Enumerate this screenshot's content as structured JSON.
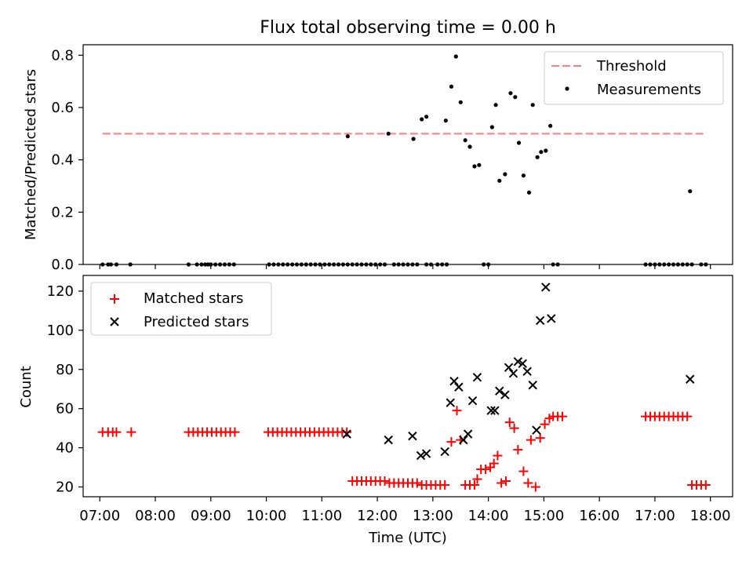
{
  "chart_data": [
    {
      "type": "scatter",
      "title": "Flux total observing time = 0.00 h",
      "xlabel": "",
      "ylabel": "Matched/Predicted stars",
      "xlim": [
        "06:42",
        "18:24"
      ],
      "ylim": [
        0,
        0.84
      ],
      "yticks": [
        0.0,
        0.2,
        0.4,
        0.6,
        0.8
      ],
      "ytick_labels": [
        "0.0",
        "0.2",
        "0.4",
        "0.6",
        "0.8"
      ],
      "legend": {
        "placement": "upper right",
        "entries": [
          "Threshold",
          "Measurements"
        ]
      },
      "threshold": {
        "name": "Threshold",
        "value": 0.5,
        "x_range": [
          "07:03",
          "17:54"
        ],
        "color": "#ff7f7f",
        "style": "dashed"
      },
      "series": [
        {
          "name": "Measurements",
          "color": "#000000",
          "marker": "dot",
          "points": [
            [
              "07:03",
              0
            ],
            [
              "07:09",
              0
            ],
            [
              "07:12",
              0
            ],
            [
              "07:18",
              0
            ],
            [
              "07:33",
              0
            ],
            [
              "08:36",
              0
            ],
            [
              "08:45",
              0
            ],
            [
              "08:50",
              0
            ],
            [
              "08:54",
              0
            ],
            [
              "08:57",
              0
            ],
            [
              "09:00",
              0
            ],
            [
              "09:05",
              0
            ],
            [
              "09:10",
              0
            ],
            [
              "09:15",
              0
            ],
            [
              "09:20",
              0
            ],
            [
              "09:25",
              0
            ],
            [
              "10:03",
              0
            ],
            [
              "10:08",
              0
            ],
            [
              "10:13",
              0
            ],
            [
              "10:18",
              0
            ],
            [
              "10:23",
              0
            ],
            [
              "10:28",
              0
            ],
            [
              "10:33",
              0
            ],
            [
              "10:38",
              0
            ],
            [
              "10:43",
              0
            ],
            [
              "10:48",
              0
            ],
            [
              "10:53",
              0
            ],
            [
              "10:58",
              0
            ],
            [
              "11:03",
              0
            ],
            [
              "11:08",
              0
            ],
            [
              "11:13",
              0
            ],
            [
              "11:18",
              0
            ],
            [
              "11:23",
              0
            ],
            [
              "11:28",
              0
            ],
            [
              "11:33",
              0
            ],
            [
              "11:38",
              0
            ],
            [
              "11:43",
              0
            ],
            [
              "11:48",
              0
            ],
            [
              "11:53",
              0
            ],
            [
              "11:58",
              0
            ],
            [
              "12:03",
              0
            ],
            [
              "12:08",
              0
            ],
            [
              "12:18",
              0
            ],
            [
              "12:23",
              0
            ],
            [
              "12:28",
              0
            ],
            [
              "12:33",
              0
            ],
            [
              "12:38",
              0
            ],
            [
              "12:43",
              0
            ],
            [
              "12:53",
              0
            ],
            [
              "12:58",
              0
            ],
            [
              "13:05",
              0
            ],
            [
              "13:10",
              0
            ],
            [
              "13:15",
              0
            ],
            [
              "13:55",
              0
            ],
            [
              "14:00",
              0
            ],
            [
              "15:10",
              0
            ],
            [
              "15:15",
              0
            ],
            [
              "16:50",
              0
            ],
            [
              "16:55",
              0
            ],
            [
              "17:00",
              0
            ],
            [
              "17:05",
              0
            ],
            [
              "17:10",
              0
            ],
            [
              "17:15",
              0
            ],
            [
              "17:20",
              0
            ],
            [
              "17:25",
              0
            ],
            [
              "17:30",
              0
            ],
            [
              "17:35",
              0
            ],
            [
              "17:40",
              0
            ],
            [
              "17:50",
              0
            ],
            [
              "17:55",
              0
            ],
            [
              "11:28",
              0.49
            ],
            [
              "12:12",
              0.5
            ],
            [
              "12:39",
              0.48
            ],
            [
              "12:48",
              0.555
            ],
            [
              "12:53",
              0.565
            ],
            [
              "13:14",
              0.55
            ],
            [
              "13:20",
              0.68
            ],
            [
              "13:25",
              0.795
            ],
            [
              "13:30",
              0.62
            ],
            [
              "13:35",
              0.475
            ],
            [
              "13:40",
              0.45
            ],
            [
              "13:45",
              0.375
            ],
            [
              "13:50",
              0.38
            ],
            [
              "14:04",
              0.525
            ],
            [
              "14:08",
              0.61
            ],
            [
              "14:12",
              0.32
            ],
            [
              "14:18",
              0.345
            ],
            [
              "14:24",
              0.655
            ],
            [
              "14:29",
              0.64
            ],
            [
              "14:33",
              0.465
            ],
            [
              "14:38",
              0.34
            ],
            [
              "14:44",
              0.275
            ],
            [
              "14:48",
              0.61
            ],
            [
              "14:53",
              0.41
            ],
            [
              "14:57",
              0.43
            ],
            [
              "15:02",
              0.435
            ],
            [
              "15:07",
              0.53
            ],
            [
              "17:38",
              0.28
            ]
          ]
        }
      ]
    },
    {
      "type": "scatter",
      "title": "",
      "xlabel": "Time (UTC)",
      "ylabel": "Count",
      "xlim": [
        "06:42",
        "18:24"
      ],
      "ylim": [
        15,
        128
      ],
      "yticks": [
        20,
        40,
        60,
        80,
        100,
        120
      ],
      "ytick_labels": [
        "20",
        "40",
        "60",
        "80",
        "100",
        "120"
      ],
      "xtick_labels": [
        "07:00",
        "08:00",
        "09:00",
        "10:00",
        "11:00",
        "12:00",
        "13:00",
        "14:00",
        "15:00",
        "16:00",
        "17:00",
        "18:00"
      ],
      "legend": {
        "placement": "upper left",
        "entries": [
          "Matched stars",
          "Predicted stars"
        ]
      },
      "series": [
        {
          "name": "Matched stars",
          "color": "#ff0000",
          "marker": "plus",
          "points": [
            [
              "07:03",
              48
            ],
            [
              "07:09",
              48
            ],
            [
              "07:14",
              48
            ],
            [
              "07:18",
              48
            ],
            [
              "07:34",
              48
            ],
            [
              "08:36",
              48
            ],
            [
              "08:41",
              48
            ],
            [
              "08:46",
              48
            ],
            [
              "08:51",
              48
            ],
            [
              "08:56",
              48
            ],
            [
              "09:01",
              48
            ],
            [
              "09:06",
              48
            ],
            [
              "09:11",
              48
            ],
            [
              "09:16",
              48
            ],
            [
              "09:21",
              48
            ],
            [
              "09:26",
              48
            ],
            [
              "10:02",
              48
            ],
            [
              "10:07",
              48
            ],
            [
              "10:12",
              48
            ],
            [
              "10:17",
              48
            ],
            [
              "10:22",
              48
            ],
            [
              "10:27",
              48
            ],
            [
              "10:32",
              48
            ],
            [
              "10:37",
              48
            ],
            [
              "10:42",
              48
            ],
            [
              "10:47",
              48
            ],
            [
              "10:52",
              48
            ],
            [
              "10:57",
              48
            ],
            [
              "11:02",
              48
            ],
            [
              "11:07",
              48
            ],
            [
              "11:12",
              48
            ],
            [
              "11:17",
              48
            ],
            [
              "11:22",
              48
            ],
            [
              "11:27",
              48
            ],
            [
              "11:33",
              23
            ],
            [
              "11:38",
              23
            ],
            [
              "11:43",
              23
            ],
            [
              "11:48",
              23
            ],
            [
              "11:53",
              23
            ],
            [
              "11:58",
              23
            ],
            [
              "12:03",
              23
            ],
            [
              "12:08",
              23
            ],
            [
              "12:13",
              22
            ],
            [
              "12:18",
              22
            ],
            [
              "12:23",
              22
            ],
            [
              "12:28",
              22
            ],
            [
              "12:33",
              22
            ],
            [
              "12:38",
              22
            ],
            [
              "12:43",
              22
            ],
            [
              "12:48",
              21
            ],
            [
              "12:53",
              21
            ],
            [
              "12:58",
              21
            ],
            [
              "13:03",
              21
            ],
            [
              "13:08",
              21
            ],
            [
              "13:13",
              21
            ],
            [
              "13:20",
              43
            ],
            [
              "13:26",
              59
            ],
            [
              "13:30",
              44
            ],
            [
              "13:35",
              21
            ],
            [
              "13:40",
              21
            ],
            [
              "13:45",
              21
            ],
            [
              "13:48",
              24
            ],
            [
              "13:52",
              29
            ],
            [
              "13:57",
              29
            ],
            [
              "14:02",
              30
            ],
            [
              "14:06",
              32
            ],
            [
              "14:10",
              36
            ],
            [
              "14:14",
              22
            ],
            [
              "14:19",
              23
            ],
            [
              "14:23",
              53
            ],
            [
              "14:28",
              50
            ],
            [
              "14:32",
              39
            ],
            [
              "14:38",
              28
            ],
            [
              "14:43",
              22
            ],
            [
              "14:46",
              44
            ],
            [
              "14:51",
              20
            ],
            [
              "14:56",
              45
            ],
            [
              "15:01",
              52
            ],
            [
              "15:06",
              55
            ],
            [
              "15:10",
              56
            ],
            [
              "15:15",
              56
            ],
            [
              "15:20",
              56
            ],
            [
              "16:50",
              56
            ],
            [
              "16:55",
              56
            ],
            [
              "17:00",
              56
            ],
            [
              "17:05",
              56
            ],
            [
              "17:10",
              56
            ],
            [
              "17:15",
              56
            ],
            [
              "17:20",
              56
            ],
            [
              "17:25",
              56
            ],
            [
              "17:30",
              56
            ],
            [
              "17:35",
              56
            ],
            [
              "17:40",
              21
            ],
            [
              "17:45",
              21
            ],
            [
              "17:50",
              21
            ],
            [
              "17:55",
              21
            ]
          ]
        },
        {
          "name": "Predicted stars",
          "color": "#000000",
          "marker": "x",
          "points": [
            [
              "11:27",
              47
            ],
            [
              "12:12",
              44
            ],
            [
              "12:38",
              46
            ],
            [
              "12:47",
              36
            ],
            [
              "12:53",
              37
            ],
            [
              "13:13",
              38
            ],
            [
              "13:19",
              63
            ],
            [
              "13:23",
              74
            ],
            [
              "13:28",
              71
            ],
            [
              "13:33",
              44
            ],
            [
              "13:38",
              47
            ],
            [
              "13:43",
              64
            ],
            [
              "13:48",
              76
            ],
            [
              "14:03",
              59
            ],
            [
              "14:07",
              59
            ],
            [
              "14:12",
              69
            ],
            [
              "14:18",
              67
            ],
            [
              "14:22",
              81
            ],
            [
              "14:27",
              78
            ],
            [
              "14:32",
              84
            ],
            [
              "14:37",
              83
            ],
            [
              "14:42",
              79
            ],
            [
              "14:48",
              72
            ],
            [
              "14:52",
              49
            ],
            [
              "14:56",
              105
            ],
            [
              "15:02",
              122
            ],
            [
              "15:08",
              106
            ],
            [
              "17:38",
              75
            ]
          ]
        }
      ]
    }
  ]
}
